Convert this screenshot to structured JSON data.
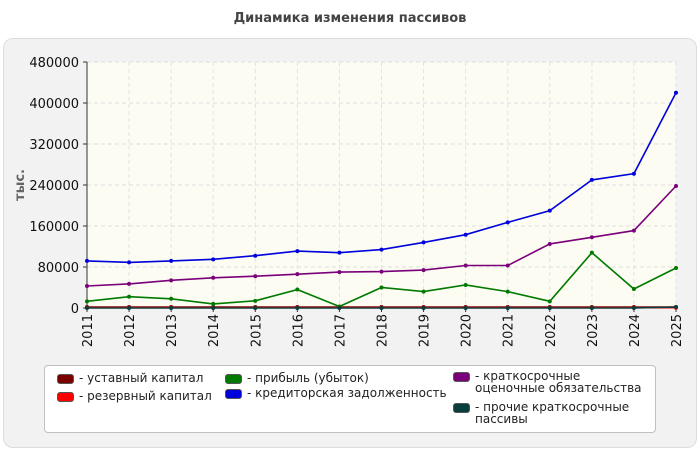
{
  "chart_data": {
    "type": "line",
    "title": "Динамика изменения пассивов",
    "ylabel": "тыс.",
    "xlabel": "",
    "x": [
      "2011",
      "2012",
      "2013",
      "2014",
      "2015",
      "2016",
      "2017",
      "2018",
      "2019",
      "2020",
      "2021",
      "2022",
      "2023",
      "2024",
      "2025"
    ],
    "ylim": [
      0,
      480000
    ],
    "yticks": [
      0,
      80000,
      160000,
      240000,
      320000,
      400000,
      480000
    ],
    "ytick_labels": [
      "0",
      "80000",
      "160000",
      "240000",
      "320000",
      "400000",
      "480000"
    ],
    "grid": true,
    "legend_position": "bottom",
    "series": [
      {
        "name": "- уставный капитал",
        "color": "#7a0000",
        "values": [
          2000,
          2000,
          2000,
          2000,
          2000,
          2000,
          2000,
          2000,
          2000,
          2000,
          2000,
          2000,
          2000,
          2000,
          2000
        ]
      },
      {
        "name": "- резервный капитал",
        "color": "#ff0000",
        "values": [
          500,
          500,
          500,
          500,
          500,
          500,
          500,
          500,
          500,
          500,
          500,
          500,
          500,
          500,
          500
        ]
      },
      {
        "name": "- прибыль (убыток)",
        "color": "#007a00",
        "values": [
          13000,
          22000,
          18000,
          8000,
          14000,
          36000,
          3000,
          40000,
          32000,
          45000,
          32000,
          13000,
          108000,
          37000,
          78000
        ]
      },
      {
        "name": "- кредиторская задолженность",
        "color": "#0000dd",
        "values": [
          92000,
          89000,
          92000,
          95000,
          102000,
          111000,
          108000,
          114000,
          128000,
          143000,
          167000,
          190000,
          250000,
          262000,
          420000
        ]
      },
      {
        "name": "- краткосрочные оценочные обязательства",
        "color": "#7a007a",
        "values": [
          43000,
          47000,
          54000,
          59000,
          62000,
          66000,
          70000,
          71000,
          74000,
          83000,
          83000,
          125000,
          138000,
          151000,
          238000
        ]
      },
      {
        "name": "- прочие краткосрочные пассивы",
        "color": "#0a3d3d",
        "values": [
          0,
          0,
          0,
          0,
          0,
          0,
          0,
          0,
          0,
          0,
          0,
          0,
          0,
          0,
          2000
        ]
      }
    ]
  },
  "legend": {
    "items": [
      {
        "label": "- уставный капитал",
        "color": "#7a0000"
      },
      {
        "label": "- резервный капитал",
        "color": "#ff0000"
      },
      {
        "label": "- прибыль (убыток)",
        "color": "#007a00"
      },
      {
        "label": "- кредиторская задолженность",
        "color": "#0000dd"
      },
      {
        "label": "- краткосрочные оценочные обязательства",
        "color": "#7a007a"
      },
      {
        "label": "- прочие краткосрочные пассивы",
        "color": "#0a3d3d"
      }
    ]
  }
}
